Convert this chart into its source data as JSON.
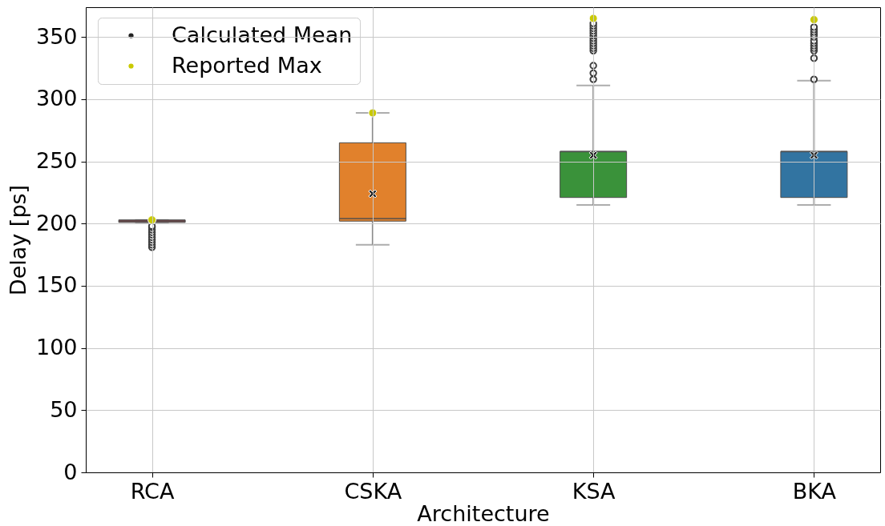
{
  "chart_data": {
    "type": "box",
    "xlabel": "Architecture",
    "ylabel": "Delay [ps]",
    "categories": [
      "RCA",
      "CSKA",
      "KSA",
      "BKA"
    ],
    "colors": [
      "#8f4449",
      "#e1812c",
      "#3a923a",
      "#3274a1"
    ],
    "boxes": [
      {
        "low": 201,
        "q1": 201,
        "median": 202,
        "q3": 203,
        "high": 203,
        "outliers": [
          181,
          183,
          185,
          187,
          189,
          191,
          193,
          195,
          197,
          198
        ]
      },
      {
        "low": 183,
        "q1": 202,
        "median": 204,
        "q3": 265,
        "high": 289
      },
      {
        "low": 215,
        "q1": 221,
        "median": 258,
        "q3": 258,
        "high": 311,
        "outliers": [
          316,
          321,
          327,
          339,
          341,
          343,
          345,
          347,
          349,
          351,
          353,
          355,
          357,
          359,
          361
        ]
      },
      {
        "low": 215,
        "q1": 221,
        "median": 258,
        "q3": 258,
        "high": 315,
        "outliers": [
          316,
          333,
          339,
          341,
          343,
          345,
          347,
          350,
          352,
          354,
          356,
          358
        ]
      }
    ],
    "series": [
      {
        "name": "Calculated Mean",
        "type": "scatter",
        "marker": "cross",
        "color": "#222222",
        "x": [
          "RCA",
          "CSKA",
          "KSA",
          "BKA"
        ],
        "values": [
          null,
          224,
          255,
          255
        ]
      },
      {
        "name": "Reported Max",
        "type": "scatter",
        "marker": "circle",
        "color": "#c9c900",
        "x": [
          "RCA",
          "CSKA",
          "KSA",
          "BKA"
        ],
        "values": [
          203,
          289,
          365,
          364
        ]
      }
    ],
    "ylim": [
      0,
      374
    ],
    "yticks": [
      0,
      50,
      100,
      150,
      200,
      250,
      300,
      350
    ],
    "grid": true,
    "legend": "top left"
  }
}
